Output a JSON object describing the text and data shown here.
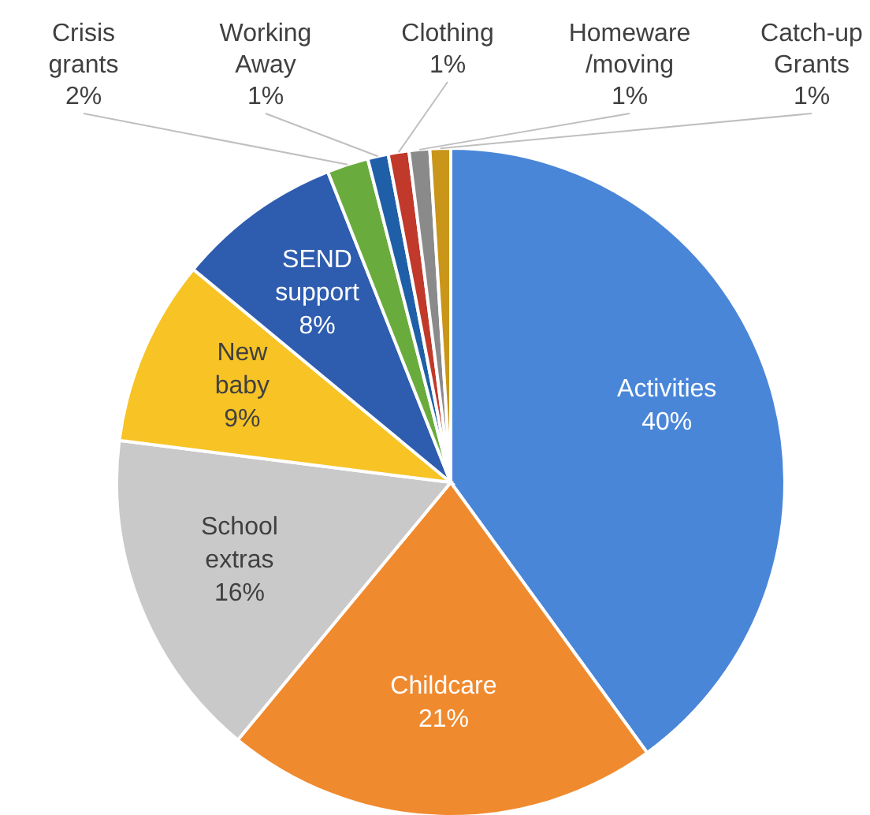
{
  "chart_data": {
    "type": "pie",
    "categories": [
      "Activities",
      "Childcare",
      "School extras",
      "New baby",
      "SEND support",
      "Crisis grants",
      "Working Away",
      "Clothing",
      "Homeware/moving",
      "Catch-up Grants"
    ],
    "values": [
      40,
      21,
      16,
      9,
      8,
      2,
      1,
      1,
      1,
      1
    ],
    "colors": [
      "#4a86d8",
      "#f08a2e",
      "#c9c9c9",
      "#f7c325",
      "#2e5cae",
      "#6aab3e",
      "#1f5fa8",
      "#c0392b",
      "#8a8a8a",
      "#c9961a"
    ],
    "value_labels": [
      "40%",
      "21%",
      "16%",
      "9%",
      "8%",
      "2%",
      "1%",
      "1%",
      "1%",
      "1%"
    ]
  }
}
